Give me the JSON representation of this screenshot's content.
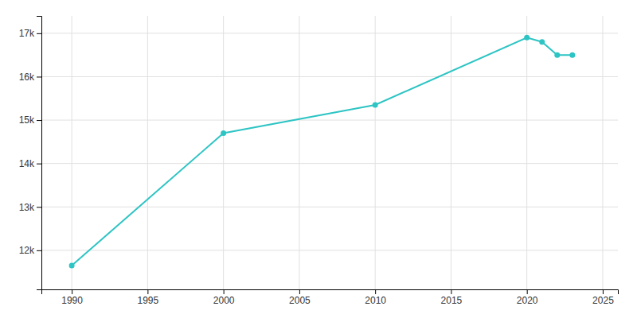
{
  "chart_data": {
    "type": "line",
    "x": [
      1990,
      2000,
      2010,
      2020,
      2021,
      2022,
      2023
    ],
    "values": [
      11650,
      14700,
      15350,
      16900,
      16800,
      16500,
      16500
    ],
    "color": "#2ec4c4",
    "marker": "circle",
    "xlim": [
      1988,
      2026
    ],
    "xticks": [
      1990,
      1995,
      2000,
      2005,
      2010,
      2015,
      2020,
      2025
    ],
    "ylim": [
      11100,
      17400
    ],
    "yticks": [
      {
        "value": 12000,
        "label": "12k"
      },
      {
        "value": 13000,
        "label": "13k"
      },
      {
        "value": 14000,
        "label": "14k"
      },
      {
        "value": 15000,
        "label": "15k"
      },
      {
        "value": 16000,
        "label": "16k"
      },
      {
        "value": 17000,
        "label": "17k"
      }
    ],
    "grid": true
  }
}
